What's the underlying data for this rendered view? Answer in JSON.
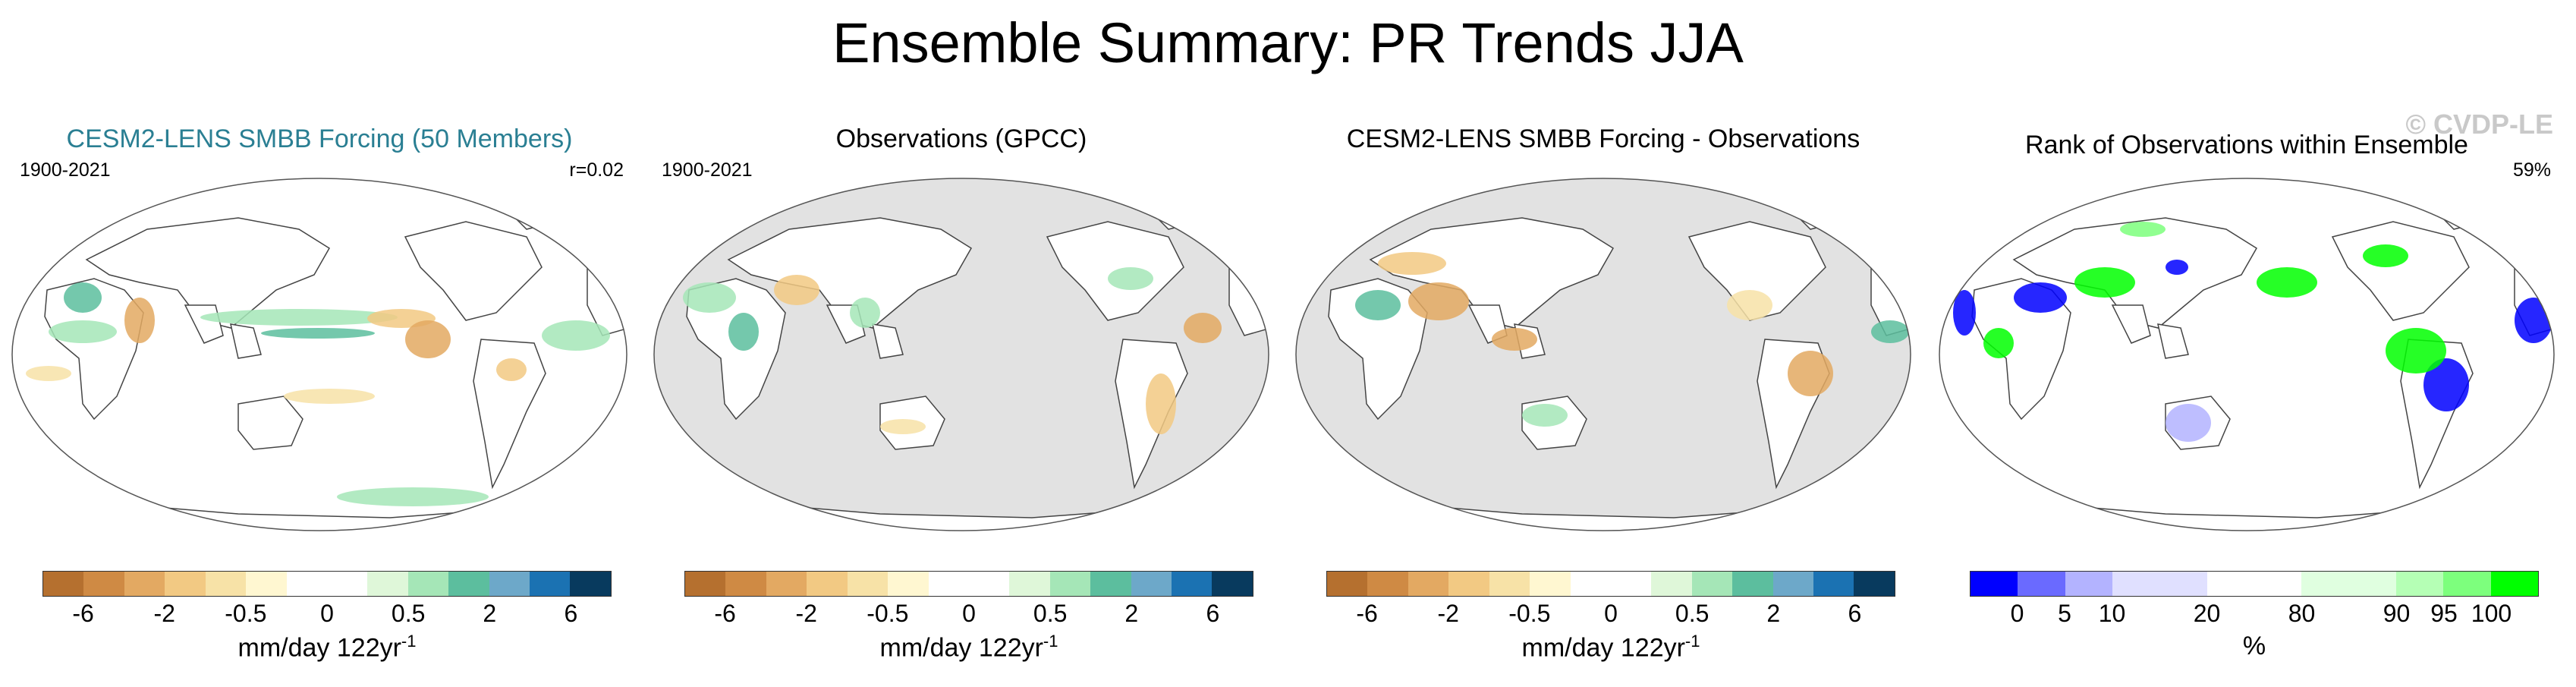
{
  "title": "Ensemble Summary: PR Trends JJA",
  "watermark": "© CVDP-LE",
  "panels": [
    {
      "title": "CESM2-LENS SMBB Forcing (50 Members)",
      "left_text": "1900-2021",
      "right_text": "r=0.02",
      "ocean_color": "#ffffff"
    },
    {
      "title": "Observations (GPCC)",
      "left_text": "1900-2021",
      "right_text": "",
      "ocean_color": "#e2e2e2"
    },
    {
      "title": "CESM2-LENS SMBB Forcing - Observations",
      "left_text": "",
      "right_text": "",
      "ocean_color": "#e2e2e2"
    },
    {
      "title": "Rank of Observations within Ensemble",
      "left_text": "",
      "right_text": "59%",
      "ocean_color": "#ffffff"
    }
  ],
  "trend_colorbar": {
    "colors": [
      "#b5702f",
      "#cf8a44",
      "#e3a962",
      "#f2c983",
      "#f7e2a7",
      "#fff7d1",
      "#ffffff",
      "#ffffff",
      "#dff7d9",
      "#a5e6b7",
      "#5cbe9e",
      "#6da8c9",
      "#1b72b2",
      "#083a5e"
    ],
    "tick_labels": [
      "-6",
      "-2",
      "-0.5",
      "0",
      "0.5",
      "2",
      "6"
    ],
    "label": "mm/day 122yr",
    "label_sup": "-1"
  },
  "rank_colorbar": {
    "colors": [
      "#0000ff",
      "#6a6aff",
      "#b3b3ff",
      "#e0e0ff",
      "#e0e0ff",
      "#ffffff",
      "#ffffff",
      "#e0ffe0",
      "#e0ffe0",
      "#b5ffb5",
      "#7dff7d",
      "#00ff00"
    ],
    "tick_labels": [
      "0",
      "5",
      "10",
      "20",
      "80",
      "90",
      "95",
      "100"
    ],
    "label": "%"
  },
  "colors": {
    "land_outline": "#444444",
    "ocean_masked": "#e2e2e2",
    "title_accent": "#2a7f93"
  }
}
